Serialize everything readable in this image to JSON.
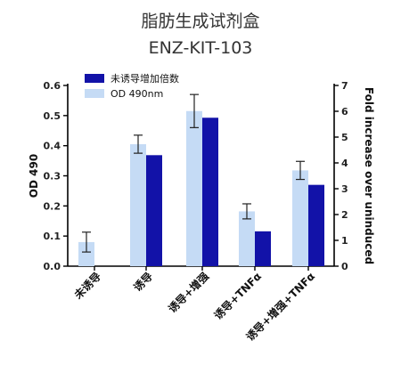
{
  "chart_data": {
    "type": "bar",
    "title": "脂肪生成试剂盒",
    "subtitle": "ENZ-KIT-103",
    "categories": [
      "未诱导",
      "诱导",
      "诱导+增强",
      "诱导+TNFα",
      "诱导+增强+TNFα"
    ],
    "ylabel": "OD 490",
    "y2label": "Fold increase over uninduced",
    "ylim": [
      0,
      0.6
    ],
    "y2lim": [
      0,
      7
    ],
    "yticks": [
      "0.0",
      "0.1",
      "0.2",
      "0.3",
      "0.4",
      "0.5",
      "0.6"
    ],
    "y2ticks": [
      "0",
      "1",
      "2",
      "3",
      "4",
      "5",
      "6",
      "7"
    ],
    "legend_position": "top-left",
    "series": [
      {
        "name": "OD 490nm",
        "axis": "left",
        "color": "#c5dbf5",
        "values": [
          0.08,
          0.405,
          0.515,
          0.182,
          0.318
        ],
        "errors": [
          0.033,
          0.03,
          0.055,
          0.025,
          0.03
        ]
      },
      {
        "name": "未诱导增加倍数",
        "axis": "right",
        "color": "#1212a8",
        "values": [
          0,
          4.3,
          5.75,
          1.35,
          3.15
        ]
      }
    ]
  }
}
